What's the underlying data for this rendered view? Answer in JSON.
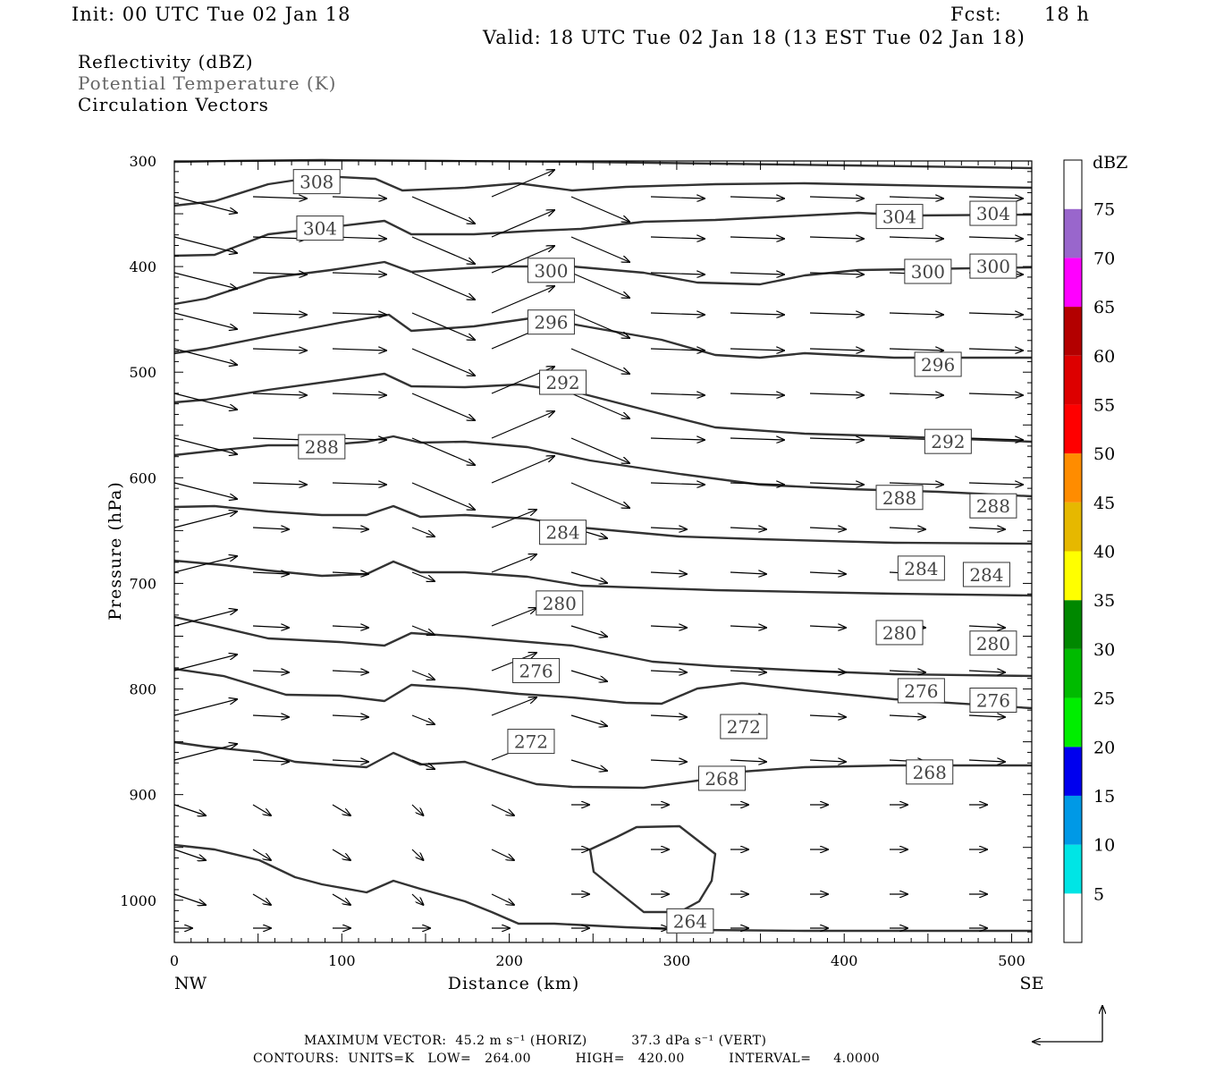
{
  "header": {
    "init": "Init: 00 UTC Tue 02 Jan 18",
    "fcst_label": "Fcst:",
    "fcst_value": "18 h",
    "valid": "Valid: 18 UTC Tue 02 Jan 18 (13 EST Tue 02 Jan 18)"
  },
  "legend": {
    "line1": "Reflectivity (dBZ)",
    "line2": "Potential Temperature (K)",
    "line3": "Circulation Vectors"
  },
  "colorbar": {
    "title": "dBZ",
    "levels": [
      "5",
      "10",
      "15",
      "20",
      "25",
      "30",
      "35",
      "40",
      "45",
      "50",
      "55",
      "60",
      "65",
      "70",
      "75"
    ],
    "colors": [
      "#ffffff",
      "#00e5e5",
      "#0099e6",
      "#0000ee",
      "#00ee00",
      "#00bb00",
      "#008800",
      "#ffff00",
      "#e6b800",
      "#ff8c00",
      "#ff0000",
      "#dd0000",
      "#b30000",
      "#ff00ff",
      "#9966cc",
      "#ffffff"
    ]
  },
  "footer": {
    "line1": "MAXIMUM VECTOR:  45.2 m s⁻¹ (HORIZ)          37.3 dPa s⁻¹ (VERT)",
    "line2": "CONTOURS:  UNITS=K   LOW=   264.00          HIGH=   420.00          INTERVAL=     4.0000"
  },
  "chart_data": {
    "type": "contour",
    "xlabel": "Distance (km)",
    "ylabel": "Pressure (hPa)",
    "xlim": [
      0,
      512
    ],
    "ylim": [
      1040,
      300
    ],
    "x_ticks": [
      "0",
      "100",
      "200",
      "300",
      "400",
      "500"
    ],
    "y_ticks": [
      "300",
      "400",
      "500",
      "600",
      "700",
      "800",
      "900",
      "1000"
    ],
    "x_end_labels": {
      "left": "NW",
      "right": "SE"
    },
    "contour_labels": [
      {
        "text": "308",
        "x": 85,
        "p": 320
      },
      {
        "text": "304",
        "x": 87,
        "p": 364
      },
      {
        "text": "304",
        "x": 433,
        "p": 353
      },
      {
        "text": "304",
        "x": 489,
        "p": 350
      },
      {
        "text": "300",
        "x": 225,
        "p": 404
      },
      {
        "text": "300",
        "x": 450,
        "p": 405
      },
      {
        "text": "300",
        "x": 489,
        "p": 400
      },
      {
        "text": "296",
        "x": 225,
        "p": 453
      },
      {
        "text": "296",
        "x": 456,
        "p": 493
      },
      {
        "text": "292",
        "x": 232,
        "p": 510
      },
      {
        "text": "292",
        "x": 462,
        "p": 566
      },
      {
        "text": "288",
        "x": 88,
        "p": 571
      },
      {
        "text": "288",
        "x": 433,
        "p": 619
      },
      {
        "text": "288",
        "x": 489,
        "p": 627
      },
      {
        "text": "284",
        "x": 232,
        "p": 652
      },
      {
        "text": "284",
        "x": 446,
        "p": 686
      },
      {
        "text": "284",
        "x": 485,
        "p": 692
      },
      {
        "text": "280",
        "x": 230,
        "p": 719
      },
      {
        "text": "280",
        "x": 433,
        "p": 747
      },
      {
        "text": "280",
        "x": 489,
        "p": 757
      },
      {
        "text": "276",
        "x": 216,
        "p": 783
      },
      {
        "text": "276",
        "x": 446,
        "p": 802
      },
      {
        "text": "276",
        "x": 489,
        "p": 811
      },
      {
        "text": "272",
        "x": 213,
        "p": 850
      },
      {
        "text": "272",
        "x": 340,
        "p": 836
      },
      {
        "text": "268",
        "x": 327,
        "p": 885
      },
      {
        "text": "268",
        "x": 451,
        "p": 879
      },
      {
        "text": "264",
        "x": 308,
        "p": 1020
      }
    ]
  }
}
